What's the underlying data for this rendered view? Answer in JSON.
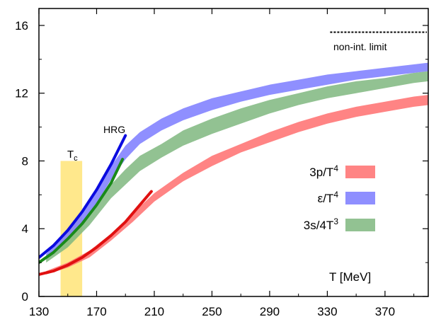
{
  "chart_data": {
    "type": "area",
    "xlabel": "T [MeV]",
    "ylabel": "",
    "xlim": [
      130,
      400
    ],
    "ylim": [
      0,
      17
    ],
    "xticks": [
      130,
      170,
      210,
      250,
      290,
      330,
      370
    ],
    "yticks": [
      0,
      4,
      8,
      12,
      16
    ],
    "grid": false,
    "legend_position": "center-right",
    "legend": [
      {
        "label": "3p/T⁴",
        "base": "3p/T",
        "sup": "4",
        "series": "p"
      },
      {
        "label": "ε/T⁴",
        "base": "ε/T",
        "sup": "4",
        "series": "e"
      },
      {
        "label": "3s/4T³",
        "base": "3s/4T",
        "sup": "3",
        "series": "s"
      }
    ],
    "bands": [
      {
        "name": "3p/T^4",
        "color": "#ff6e6e",
        "x": [
          135,
          150,
          165,
          180,
          195,
          210,
          230,
          250,
          270,
          290,
          310,
          330,
          350,
          370,
          390,
          400
        ],
        "lower": [
          1.3,
          1.7,
          2.3,
          3.3,
          4.4,
          5.6,
          6.8,
          7.7,
          8.5,
          9.1,
          9.7,
          10.2,
          10.6,
          10.9,
          11.2,
          11.3
        ],
        "upper": [
          1.5,
          2.0,
          2.7,
          3.7,
          4.9,
          6.1,
          7.3,
          8.3,
          9.0,
          9.7,
          10.3,
          10.8,
          11.2,
          11.5,
          11.8,
          11.9
        ]
      },
      {
        "name": "3s/4T^3",
        "color": "#7fb77f",
        "x": [
          135,
          150,
          165,
          180,
          190,
          200,
          215,
          230,
          250,
          270,
          290,
          310,
          330,
          350,
          370,
          390,
          400
        ],
        "lower": [
          2.0,
          2.9,
          4.2,
          5.8,
          6.6,
          7.4,
          8.2,
          8.9,
          9.6,
          10.2,
          10.8,
          11.3,
          11.7,
          12.0,
          12.3,
          12.6,
          12.7
        ],
        "upper": [
          2.3,
          3.4,
          4.9,
          6.6,
          7.5,
          8.3,
          9.0,
          9.8,
          10.5,
          11.1,
          11.6,
          12.0,
          12.4,
          12.7,
          12.9,
          13.2,
          13.3
        ]
      },
      {
        "name": "ε/T^4",
        "color": "#7b7bff",
        "x": [
          135,
          150,
          165,
          180,
          190,
          200,
          215,
          230,
          250,
          270,
          290,
          310,
          330,
          350,
          370,
          390,
          400
        ],
        "lower": [
          2.2,
          3.3,
          4.8,
          6.9,
          8.1,
          9.0,
          9.8,
          10.4,
          11.0,
          11.5,
          11.9,
          12.2,
          12.5,
          12.8,
          13.0,
          13.2,
          13.3
        ],
        "upper": [
          2.5,
          3.8,
          5.5,
          7.7,
          8.9,
          9.7,
          10.5,
          11.1,
          11.7,
          12.1,
          12.5,
          12.8,
          13.1,
          13.3,
          13.5,
          13.7,
          13.8
        ]
      }
    ],
    "hrg_curves": [
      {
        "name": "3p/T^4 HRG",
        "color": "#e01010",
        "x": [
          130,
          140,
          150,
          160,
          170,
          180,
          190,
          200,
          208
        ],
        "y": [
          1.3,
          1.5,
          1.85,
          2.3,
          2.9,
          3.6,
          4.4,
          5.4,
          6.2
        ]
      },
      {
        "name": "3s/4T^3 HRG",
        "color": "#1a8a1a",
        "x": [
          130,
          140,
          150,
          160,
          170,
          180,
          188
        ],
        "y": [
          2.0,
          2.6,
          3.4,
          4.3,
          5.4,
          6.7,
          8.1
        ]
      },
      {
        "name": "ε/T^4 HRG",
        "color": "#0a0ae0",
        "x": [
          130,
          140,
          150,
          160,
          170,
          180,
          190
        ],
        "y": [
          2.3,
          3.0,
          3.9,
          5.0,
          6.3,
          7.8,
          9.5
        ]
      }
    ],
    "tc_band": {
      "label_base": "T",
      "label_sub": "c",
      "x_range": [
        145,
        160
      ],
      "y_top": 8,
      "color": "#ffe680"
    },
    "annotations": {
      "hrg": "HRG",
      "non_int_limit": {
        "text": "non-int. limit",
        "y": 15.6,
        "x_range": [
          330,
          400
        ]
      }
    }
  }
}
